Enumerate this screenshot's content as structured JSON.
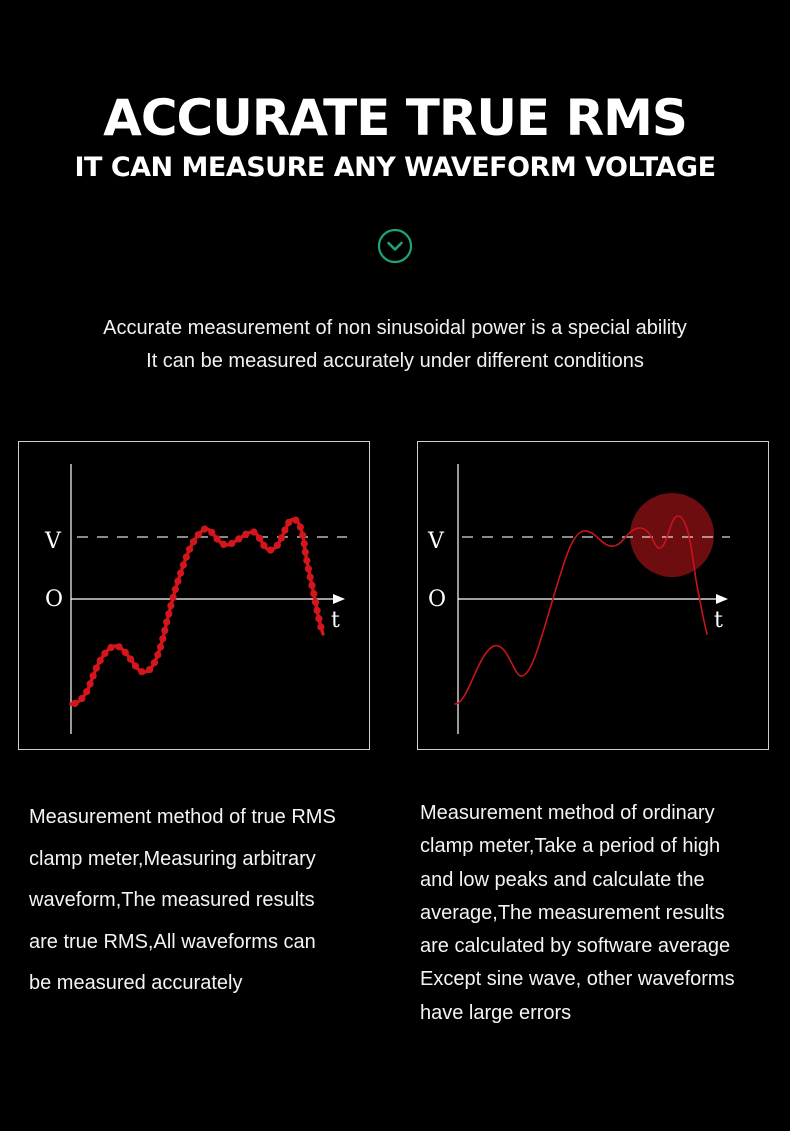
{
  "header": {
    "title": "ACCURATE TRUE RMS",
    "subtitle": "IT CAN MEASURE ANY WAVEFORM VOLTAGE",
    "chevron_icon": "chevron-down-circle-icon",
    "accent_color": "#1fa37a"
  },
  "intro": {
    "line1": "Accurate measurement of non sinusoidal power is a special ability",
    "line2": "It can be measured accurately under different conditions"
  },
  "diagram_left": {
    "v_label": "V",
    "o_label": "O",
    "t_label": "t",
    "wave_color": "#d4161c"
  },
  "diagram_right": {
    "v_label": "V",
    "o_label": "O",
    "t_label": "t",
    "wave_color": "#c8141a",
    "highlight_color": "#6e0d10"
  },
  "desc_left": {
    "lines": [
      "Measurement method of true RMS",
      "clamp meter,Measuring arbitrary",
      "waveform,The measured results",
      "are true RMS,All waveforms can",
      "be measured accurately"
    ]
  },
  "desc_right": {
    "lines": [
      "Measurement method of ordinary",
      "clamp meter,Take a period of high",
      "and low peaks and calculate the",
      "average,The measurement results",
      "are calculated by software average",
      "Except sine wave, other waveforms",
      "have large errors"
    ]
  }
}
